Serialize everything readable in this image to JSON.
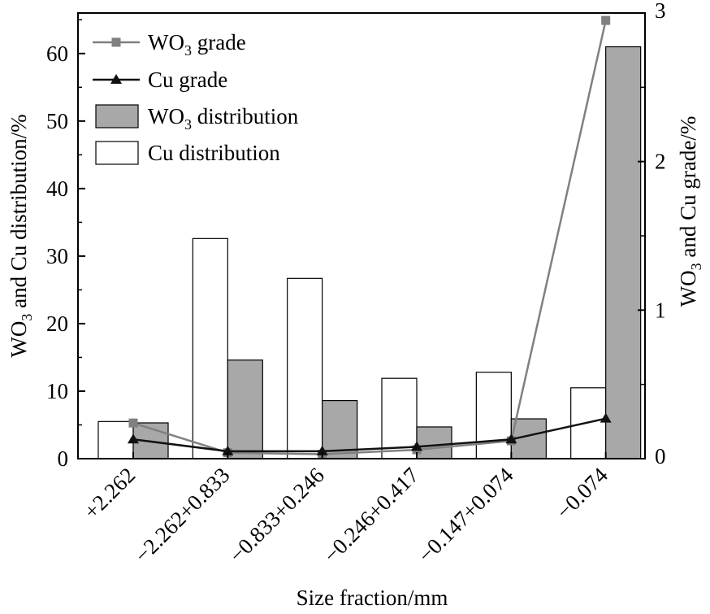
{
  "chart_data": {
    "type": "bar",
    "categories": [
      "+2.262",
      "−2.262+0.833",
      "−0.833+0.246",
      "−0.246+0.417",
      "−0.147+0.074",
      "−0.074"
    ],
    "xlabel": "Size fraction/mm",
    "ylabel_left": "WO3 and Cu distribution/%",
    "ylabel_right": "WO3 and Cu grade/%",
    "ylim_left": [
      0,
      66
    ],
    "yticks_left": [
      0,
      10,
      20,
      30,
      40,
      50,
      60
    ],
    "ylim_right": [
      0,
      3
    ],
    "yticks_right": [
      0,
      1,
      2,
      3
    ],
    "grid": false,
    "legend_position": "top-left",
    "bar_series": [
      {
        "name": "Cu distribution",
        "axis": "left",
        "color": "#ffffff",
        "values": [
          5.5,
          32.6,
          26.7,
          11.9,
          12.8,
          10.5
        ]
      },
      {
        "name": "WO3 distribution",
        "axis": "left",
        "color": "#a8a8a8",
        "values": [
          5.3,
          14.6,
          8.6,
          4.7,
          5.9,
          61.0
        ]
      }
    ],
    "line_series": [
      {
        "name": "WO3 grade",
        "axis": "right",
        "marker": "square",
        "color": "#808080",
        "values": [
          0.24,
          0.04,
          0.03,
          0.06,
          0.12,
          2.95
        ]
      },
      {
        "name": "Cu grade",
        "axis": "right",
        "marker": "triangle",
        "color": "#111111",
        "values": [
          0.13,
          0.05,
          0.05,
          0.08,
          0.13,
          0.27
        ]
      }
    ],
    "legend": [
      {
        "key": "wo3_grade",
        "name": "WO3 grade",
        "base": "WO",
        "sub": "3",
        "rest": " grade"
      },
      {
        "key": "cu_grade",
        "name": "Cu grade",
        "base": "Cu grade",
        "sub": "",
        "rest": ""
      },
      {
        "key": "wo3_dist",
        "name": "WO3 distribution",
        "base": "WO",
        "sub": "3",
        "rest": " distribution"
      },
      {
        "key": "cu_dist",
        "name": "Cu distribution",
        "base": "Cu distribution",
        "sub": "",
        "rest": ""
      }
    ],
    "axis_label_parts": {
      "left": {
        "base": "WO",
        "sub": "3",
        "rest": " and Cu distribution/%"
      },
      "right": {
        "base": "WO",
        "sub": "3",
        "rest": " and Cu grade/%"
      }
    }
  }
}
